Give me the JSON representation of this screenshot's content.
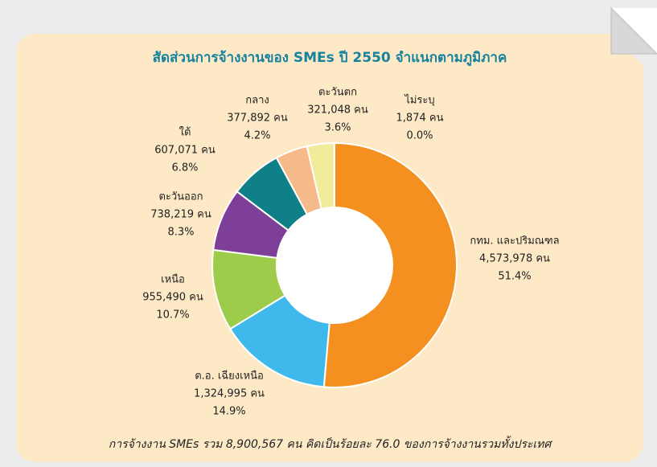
{
  "chart_data": {
    "type": "donut",
    "title": "สัดส่วนการจ้างงานของ SMEs ปี 2550 จำแนกตามภูมิภาค",
    "categories": [
      "กทม. และปริมณฑล",
      "ต.อ. เฉียงเหนือ",
      "เหนือ",
      "ตะวันออก",
      "ใต้",
      "กลาง",
      "ตะวันตก",
      "ไม่ระบุ"
    ],
    "values": [
      4573978,
      1324995,
      955490,
      738219,
      607071,
      377892,
      321048,
      1874
    ],
    "value_labels": [
      "4,573,978 คน",
      "1,324,995 คน",
      "955,490 คน",
      "738,219 คน",
      "607,071 คน",
      "377,892 คน",
      "321,048 คน",
      "1,874 คน"
    ],
    "percentages": [
      51.4,
      14.9,
      10.7,
      8.3,
      6.8,
      4.2,
      3.6,
      0.0
    ],
    "percentage_labels": [
      "51.4%",
      "14.9%",
      "10.7%",
      "8.3%",
      "6.8%",
      "4.2%",
      "3.6%",
      "0.0%"
    ],
    "colors": [
      "#f3901f",
      "#3fb8ec",
      "#9ccc4a",
      "#7d3f98",
      "#0f7f88",
      "#f6b98a",
      "#f1ec9a",
      "#dddddd"
    ],
    "annotation": "การจ้างงาน SMEs รวม 8,900,567 คน คิดเป็นร้อยละ 76.0 ของการจ้างงานรวมทั้งประเทศ"
  }
}
